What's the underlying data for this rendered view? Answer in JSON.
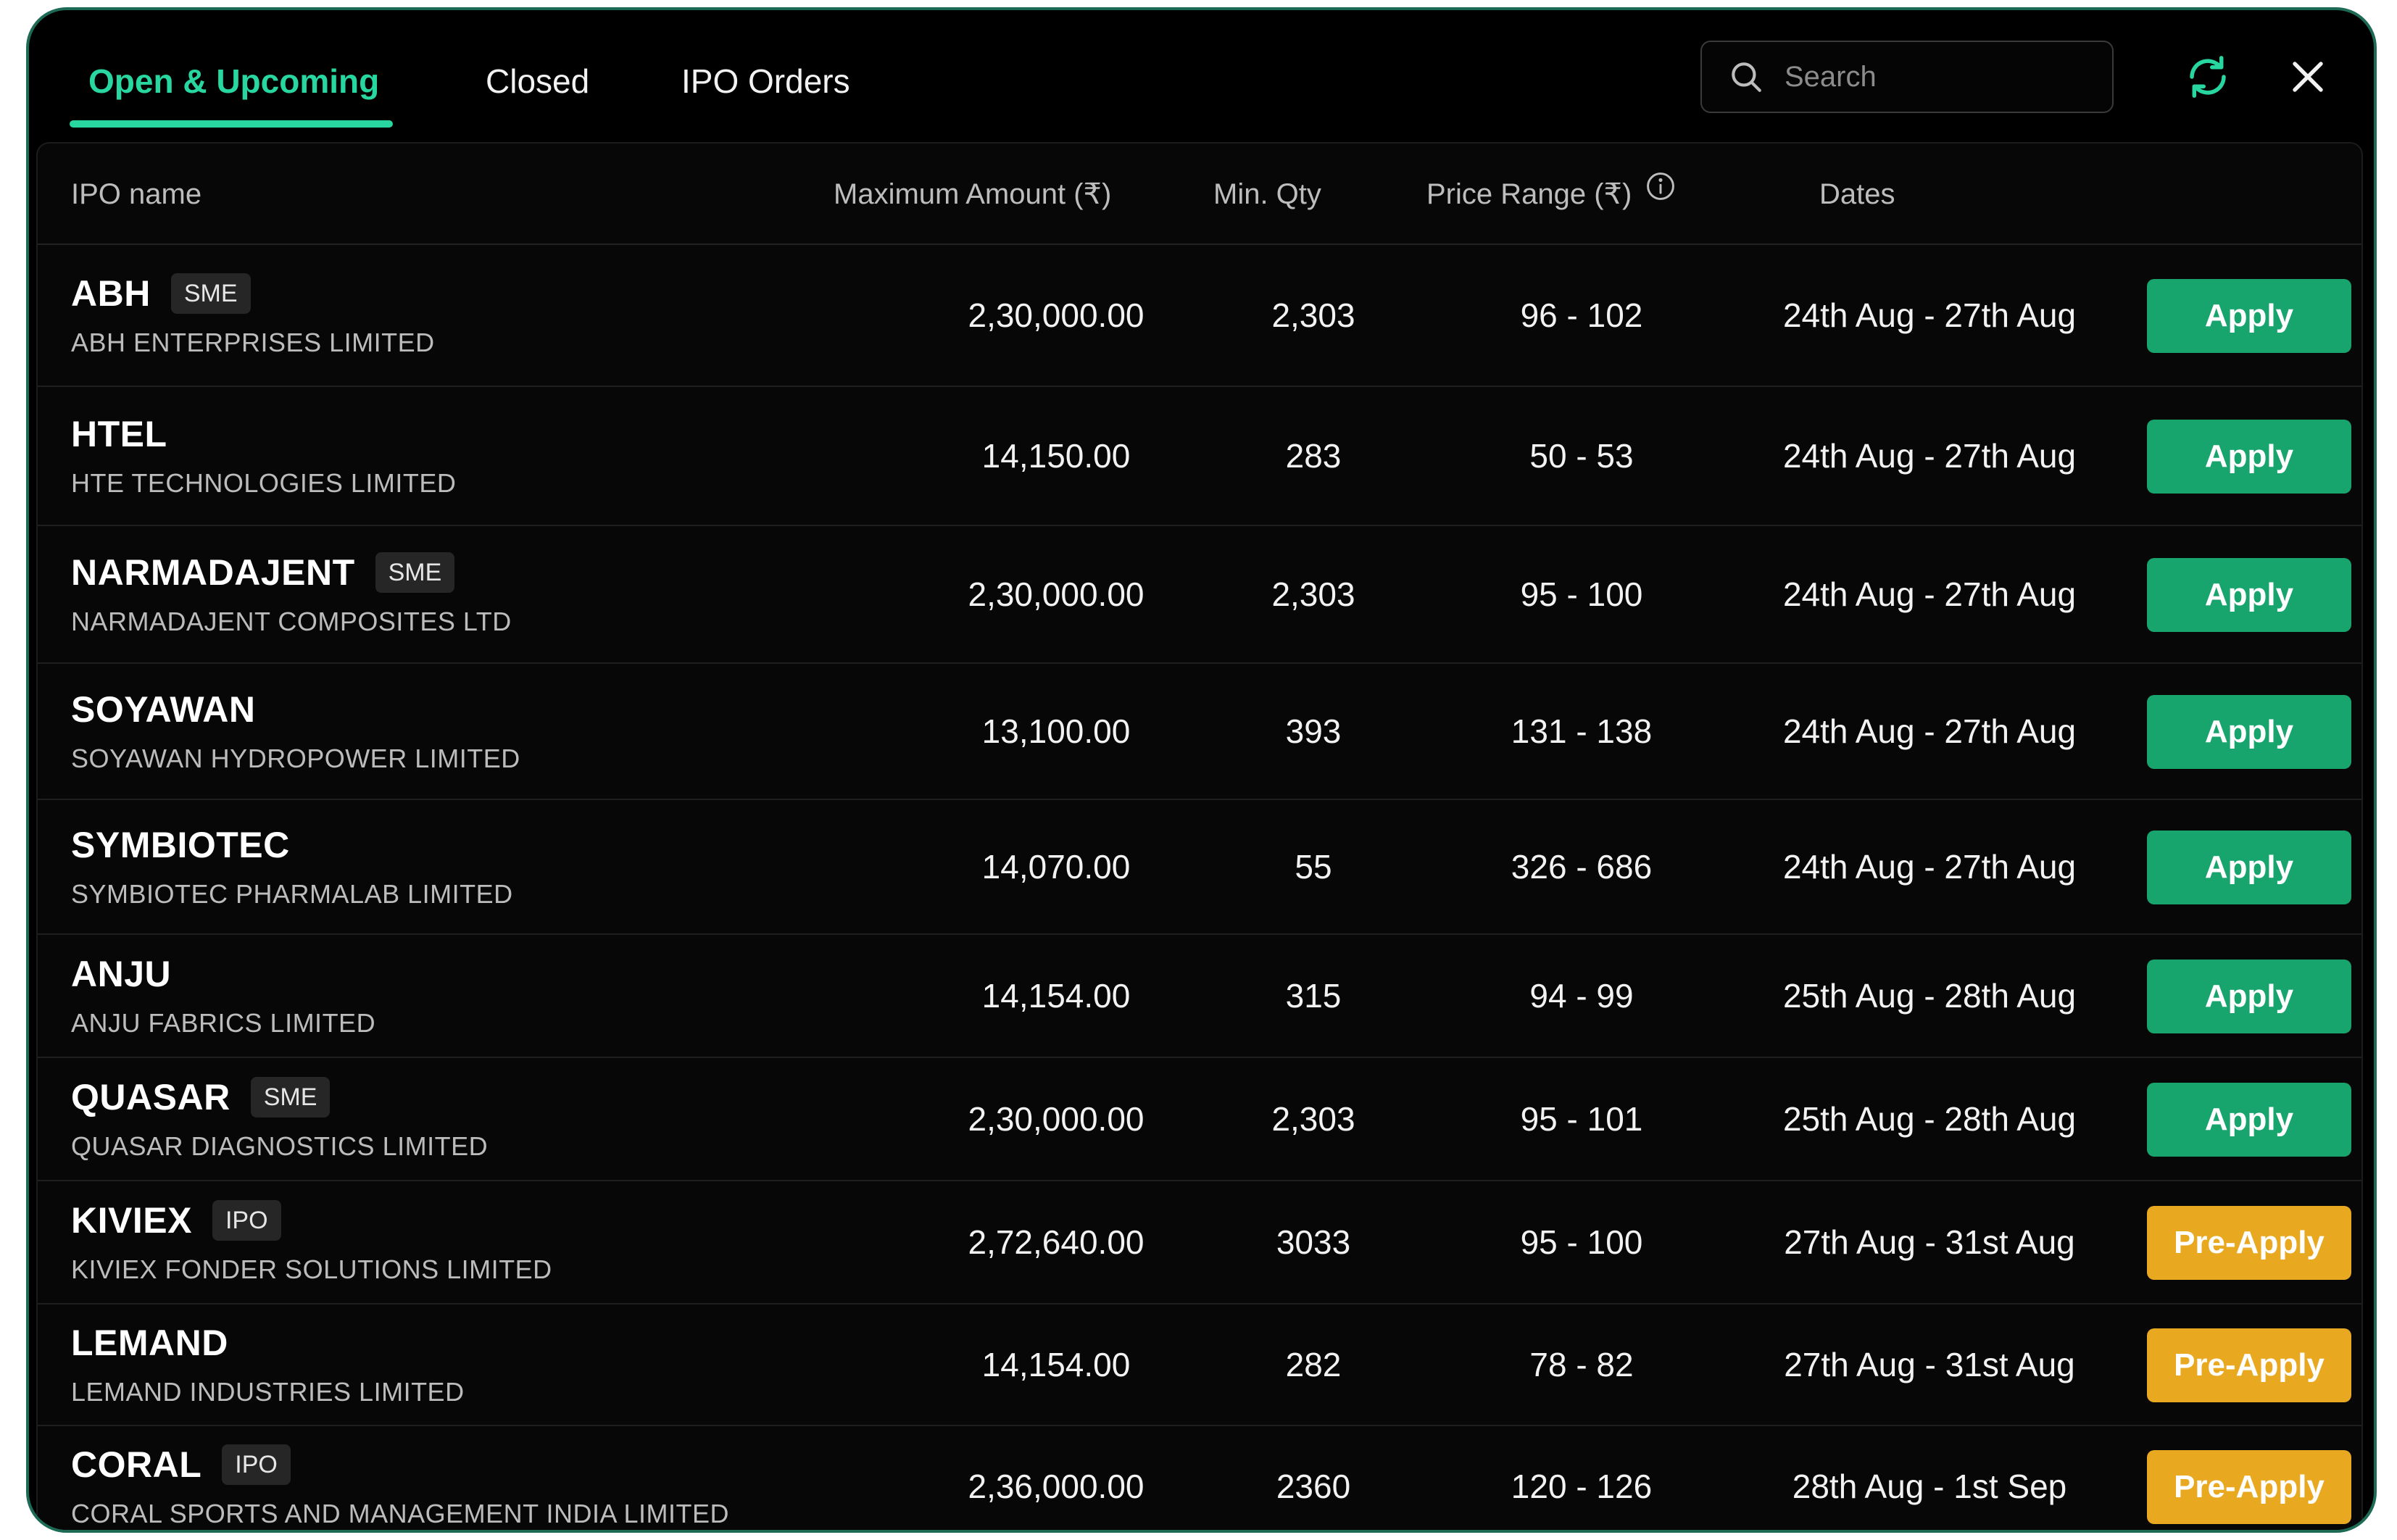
{
  "tabs": [
    {
      "label": "Open & Upcoming",
      "active": true
    },
    {
      "label": "Closed",
      "active": false
    },
    {
      "label": "IPO Orders",
      "active": false
    }
  ],
  "search": {
    "placeholder": "Search",
    "value": ""
  },
  "icons": {
    "search": "search-icon",
    "refresh": "refresh-icon",
    "close": "close-icon",
    "info": "info-icon"
  },
  "colors": {
    "accent": "#27d79f",
    "apply": "#17a56d",
    "pre_apply": "#e8a820",
    "background": "#000000"
  },
  "columns": {
    "name": "IPO name",
    "max_amount": "Maximum Amount (₹)",
    "min_qty": "Min. Qty",
    "price_range": "Price Range (₹)",
    "dates": "Dates"
  },
  "rows": [
    {
      "symbol": "ABH",
      "badge": "SME",
      "company": "ABH ENTERPRISES LIMITED",
      "max_amount": "2,30,000.00",
      "min_qty": "2,303",
      "price_range": "96 - 102",
      "dates": "24th Aug - 27th Aug",
      "action": "Apply",
      "action_type": "apply"
    },
    {
      "symbol": "HTEL",
      "badge": "",
      "company": "HTE TECHNOLOGIES LIMITED",
      "max_amount": "14,150.00",
      "min_qty": "283",
      "price_range": "50 - 53",
      "dates": "24th Aug - 27th Aug",
      "action": "Apply",
      "action_type": "apply"
    },
    {
      "symbol": "NARMADAJENT",
      "badge": "SME",
      "company": "NARMADAJENT COMPOSITES LTD",
      "max_amount": "2,30,000.00",
      "min_qty": "2,303",
      "price_range": "95 - 100",
      "dates": "24th Aug - 27th Aug",
      "action": "Apply",
      "action_type": "apply"
    },
    {
      "symbol": "SOYAWAN",
      "badge": "",
      "company": "SOYAWAN HYDROPOWER LIMITED",
      "max_amount": "13,100.00",
      "min_qty": "393",
      "price_range": "131 - 138",
      "dates": "24th Aug - 27th Aug",
      "action": "Apply",
      "action_type": "apply"
    },
    {
      "symbol": "SYMBIOTEC",
      "badge": "",
      "company": "SYMBIOTEC PHARMALAB LIMITED",
      "max_amount": "14,070.00",
      "min_qty": "55",
      "price_range": "326 - 686",
      "dates": "24th Aug - 27th Aug",
      "action": "Apply",
      "action_type": "apply"
    },
    {
      "symbol": "ANJU",
      "badge": "",
      "company": "ANJU FABRICS LIMITED",
      "max_amount": "14,154.00",
      "min_qty": "315",
      "price_range": "94 - 99",
      "dates": "25th Aug - 28th Aug",
      "action": "Apply",
      "action_type": "apply"
    },
    {
      "symbol": "QUASAR",
      "badge": "SME",
      "company": "QUASAR DIAGNOSTICS LIMITED",
      "max_amount": "2,30,000.00",
      "min_qty": "2,303",
      "price_range": "95 - 101",
      "dates": "25th Aug - 28th Aug",
      "action": "Apply",
      "action_type": "apply"
    },
    {
      "symbol": "KIVIEX",
      "badge": "IPO",
      "company": "KIVIEX FONDER SOLUTIONS LIMITED",
      "max_amount": "2,72,640.00",
      "min_qty": "3033",
      "price_range": "95 - 100",
      "dates": "27th Aug - 31st Aug",
      "action": "Pre-Apply",
      "action_type": "pre-apply"
    },
    {
      "symbol": "LEMAND",
      "badge": "",
      "company": "LEMAND INDUSTRIES LIMITED",
      "max_amount": "14,154.00",
      "min_qty": "282",
      "price_range": "78 - 82",
      "dates": "27th Aug - 31st Aug",
      "action": "Pre-Apply",
      "action_type": "pre-apply"
    },
    {
      "symbol": "CORAL",
      "badge": "IPO",
      "company": "CORAL SPORTS AND MANAGEMENT INDIA LIMITED",
      "max_amount": "2,36,000.00",
      "min_qty": "2360",
      "price_range": "120 - 126",
      "dates": "28th Aug - 1st Sep",
      "action": "Pre-Apply",
      "action_type": "pre-apply"
    }
  ]
}
